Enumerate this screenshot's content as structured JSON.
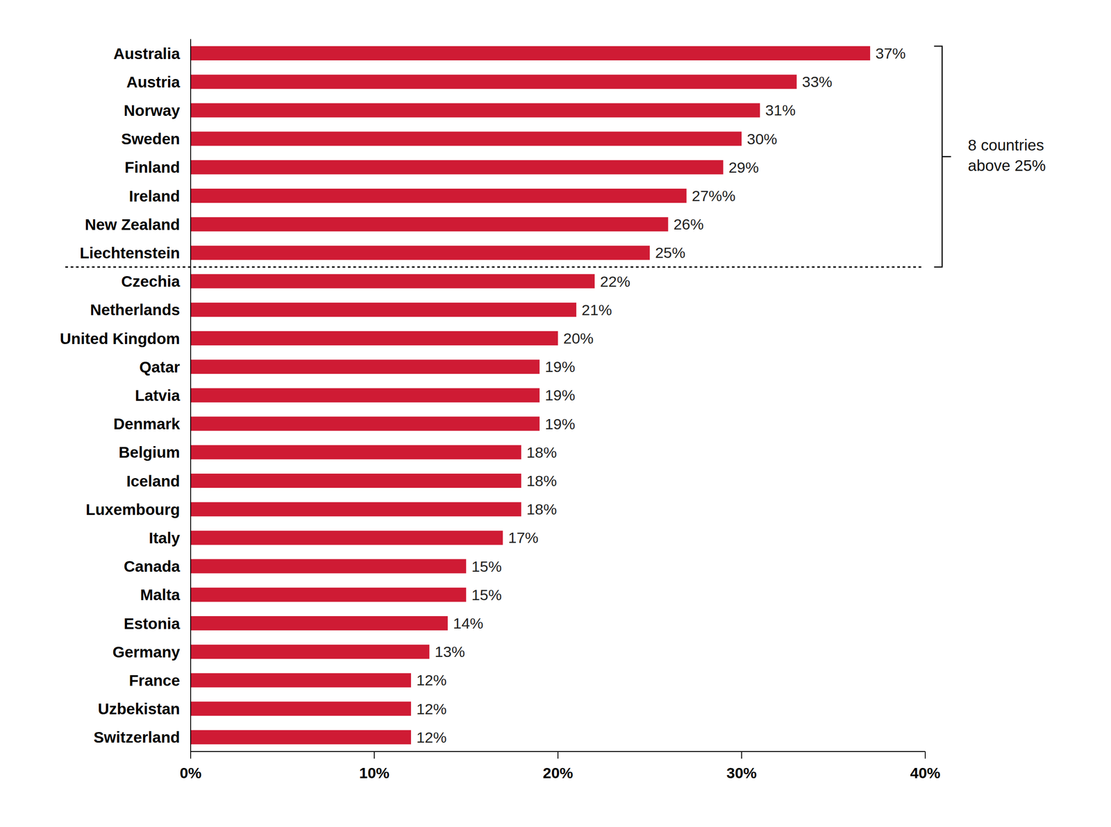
{
  "chart_data": {
    "type": "bar",
    "orientation": "horizontal",
    "categories": [
      "Australia",
      "Austria",
      "Norway",
      "Sweden",
      "Finland",
      "Ireland",
      "New Zealand",
      "Liechtenstein",
      "Czechia",
      "Netherlands",
      "United Kingdom",
      "Qatar",
      "Latvia",
      "Denmark",
      "Belgium",
      "Iceland",
      "Luxembourg",
      "Italy",
      "Canada",
      "Malta",
      "Estonia",
      "Germany",
      "France",
      "Uzbekistan",
      "Switzerland"
    ],
    "values": [
      37,
      33,
      31,
      30,
      29,
      27,
      26,
      25,
      22,
      21,
      20,
      19,
      19,
      19,
      18,
      18,
      18,
      17,
      15,
      15,
      14,
      13,
      12,
      12,
      12
    ],
    "value_labels": [
      "37%",
      "33%",
      "31%",
      "30%",
      "29%",
      "27%%",
      "26%",
      "25%",
      "22%",
      "21%",
      "20%",
      "19%",
      "19%",
      "19%",
      "18%",
      "18%",
      "18%",
      "17%",
      "15%",
      "15%",
      "14%",
      "13%",
      "12%",
      "12%",
      "12%"
    ],
    "color": "#cf1b34",
    "xlim": [
      0,
      40
    ],
    "xticks": [
      {
        "value": 0,
        "label": "0%"
      },
      {
        "value": 10,
        "label": "10%"
      },
      {
        "value": 20,
        "label": "20%"
      },
      {
        "value": 30,
        "label": "30%"
      },
      {
        "value": 40,
        "label": "40%"
      }
    ],
    "data_labels": true,
    "grid": false,
    "annotation": {
      "text": "8 countries\nabove 25%",
      "categories": [
        "Australia",
        "Liechtenstein"
      ]
    }
  }
}
